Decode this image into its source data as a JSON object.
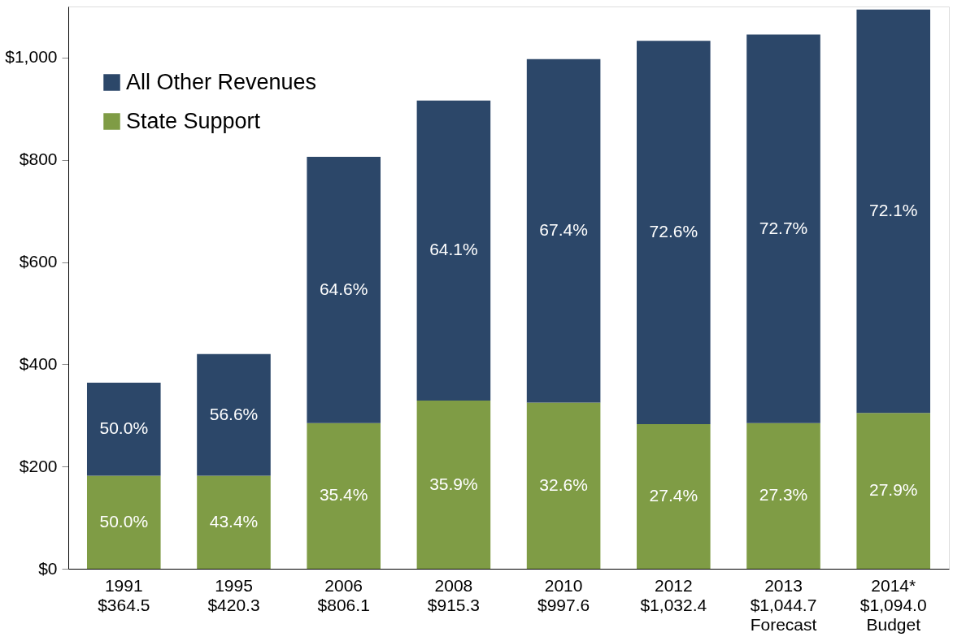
{
  "chart_data": {
    "type": "bar",
    "stacked": true,
    "categories": [
      "1991\n$364.5",
      "1995\n$420.3",
      "2006\n$806.1",
      "2008\n$915.3",
      "2010\n$997.6",
      "2012\n$1,032.4",
      "2013\n$1,044.7\nForecast",
      "2014*\n$1,094.0\nBudget"
    ],
    "series": [
      {
        "name": "State Support",
        "color": "#7f9c45",
        "values": [
          182,
          182,
          285,
          329,
          325,
          283,
          285,
          305
        ]
      },
      {
        "name": "All Other Revenues",
        "color": "#2c4769",
        "values": [
          182,
          238,
          521,
          587,
          672,
          750,
          760,
          789
        ]
      }
    ],
    "annotations": [
      "50.0%",
      "43.4%",
      "35.4%",
      "35.9%",
      "32.6%",
      "27.4%",
      "27.3%",
      "27.9%",
      "50.0%",
      "56.6%",
      "64.6%",
      "64.1%",
      "67.4%",
      "72.6%",
      "72.7%",
      "72.1%"
    ],
    "ylim": [
      0,
      1100
    ],
    "yticks": [
      {
        "value": 0,
        "label": "$0"
      },
      {
        "value": 200,
        "label": "$200"
      },
      {
        "value": 400,
        "label": "$400"
      },
      {
        "value": 600,
        "label": "$600"
      },
      {
        "value": 800,
        "label": "$800"
      },
      {
        "value": 1000,
        "label": "$1,000"
      }
    ],
    "legend": "top left",
    "grid": false
  }
}
